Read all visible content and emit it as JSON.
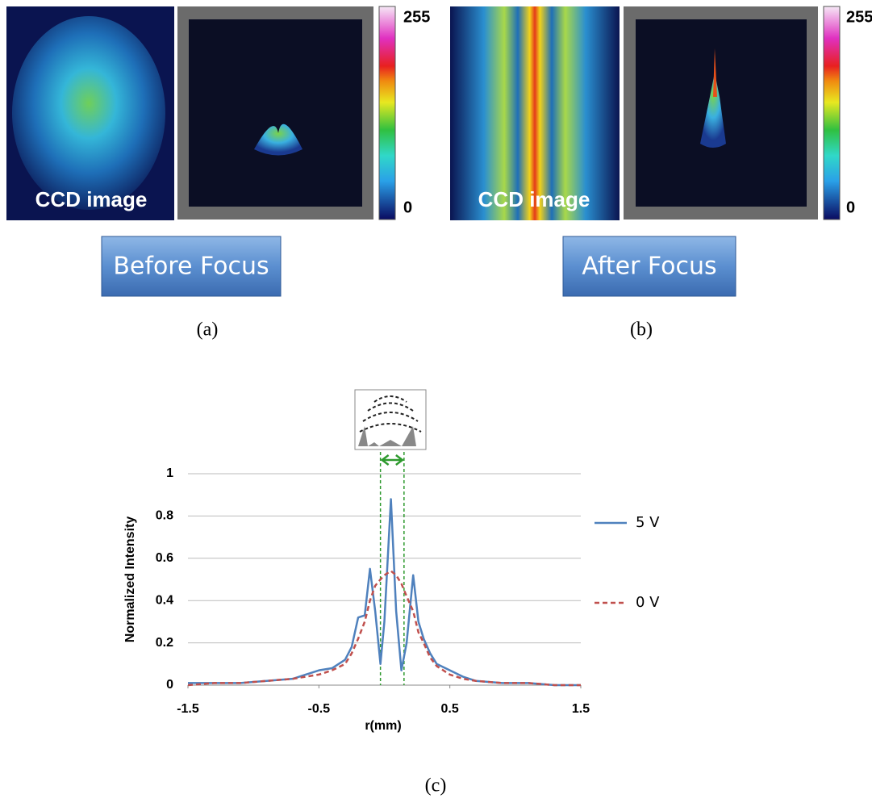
{
  "panels": [
    {
      "ccd_label": "CCD image",
      "button": "Before Focus",
      "caption": "(a)",
      "colorbar_ticks": [
        0,
        255
      ]
    },
    {
      "ccd_label": "CCD image",
      "button": "After Focus",
      "caption": "(b)",
      "colorbar_ticks": [
        0,
        255
      ]
    }
  ],
  "chart_data": {
    "type": "line",
    "xlabel": "r(mm)",
    "ylabel": "Normalized Intensity",
    "caption": "(c)",
    "x": [
      -1.5,
      -1.3,
      -1.1,
      -0.9,
      -0.7,
      -0.5,
      -0.4,
      -0.3,
      -0.25,
      -0.2,
      -0.15,
      -0.11,
      -0.07,
      -0.03,
      0,
      0.05,
      0.09,
      0.13,
      0.17,
      0.22,
      0.26,
      0.3,
      0.35,
      0.4,
      0.5,
      0.6,
      0.7,
      0.9,
      1.1,
      1.3,
      1.5
    ],
    "series": [
      {
        "name": "5 V",
        "color": "#4f81bd",
        "dash": false,
        "values": [
          0.01,
          0.01,
          0.01,
          0.02,
          0.03,
          0.07,
          0.08,
          0.12,
          0.18,
          0.32,
          0.33,
          0.55,
          0.35,
          0.1,
          0.3,
          0.88,
          0.35,
          0.07,
          0.2,
          0.52,
          0.3,
          0.22,
          0.15,
          0.1,
          0.07,
          0.04,
          0.02,
          0.01,
          0.01,
          0,
          0
        ]
      },
      {
        "name": "0 V",
        "color": "#c0504d",
        "dash": true,
        "values": [
          0,
          0.01,
          0.01,
          0.02,
          0.03,
          0.05,
          0.07,
          0.1,
          0.15,
          0.22,
          0.3,
          0.4,
          0.47,
          0.5,
          0.52,
          0.54,
          0.52,
          0.48,
          0.42,
          0.35,
          0.25,
          0.2,
          0.13,
          0.09,
          0.05,
          0.03,
          0.02,
          0.01,
          0.01,
          0,
          0
        ]
      }
    ],
    "xlim": [
      -1.5,
      1.5
    ],
    "xticks": [
      -1.5,
      -0.5,
      0.5,
      1.5
    ],
    "ylim": [
      0,
      1
    ],
    "yticks": [
      0,
      0.2,
      0.4,
      0.6,
      0.8,
      1
    ],
    "grid": true,
    "focus_band": [
      -0.03,
      0.15
    ],
    "focus_color": "#2e9a2e"
  }
}
